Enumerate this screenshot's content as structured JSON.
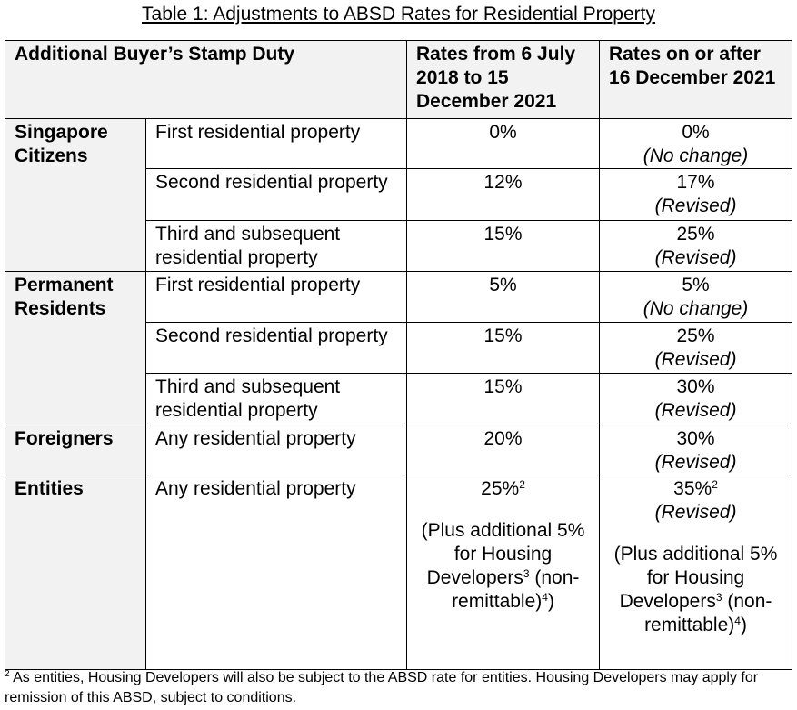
{
  "title": "Table 1: Adjustments to ABSD Rates for Residential Property",
  "header": {
    "col1": "Additional Buyer’s Stamp Duty",
    "col2": "Rates from 6 July 2018 to 15 December 2021",
    "col3": "Rates on or after 16 December 2021"
  },
  "groups": [
    {
      "name": "Singapore Citizens",
      "rows": [
        {
          "property": "First residential property",
          "old": "0%",
          "new": "0%",
          "note": "(No change)"
        },
        {
          "property": "Second residential property",
          "old": "12%",
          "new": "17%",
          "note": "(Revised)"
        },
        {
          "property": "Third and subsequent residential property",
          "old": "15%",
          "new": "25%",
          "note": "(Revised)"
        }
      ]
    },
    {
      "name": "Permanent Residents",
      "rows": [
        {
          "property": "First residential property",
          "old": "5%",
          "new": "5%",
          "note": "(No change)"
        },
        {
          "property": "Second residential property",
          "old": "15%",
          "new": "25%",
          "note": "(Revised)"
        },
        {
          "property": "Third and subsequent residential property",
          "old": "15%",
          "new": "30%",
          "note": "(Revised)"
        }
      ]
    },
    {
      "name": "Foreigners",
      "rows": [
        {
          "property": "Any residential property",
          "old": "20%",
          "new": "30%",
          "note": "(Revised)"
        }
      ]
    }
  ],
  "entities": {
    "name": "Entities",
    "property": "Any residential property",
    "old": "25%",
    "old_sup": "2",
    "new": "35%",
    "new_sup": "2",
    "note": "(Revised)",
    "extra_a": "(Plus additional 5% for Housing Developers",
    "extra_sup": "3",
    "extra_b": " (non-remittable)",
    "extra_sup2": "4",
    "extra_c": ")"
  },
  "footnote": {
    "mark": "2",
    "text": " As entities, Housing Developers will also be subject to the ABSD rate for entities. Housing Developers may apply for remission of this ABSD, subject to conditions."
  }
}
